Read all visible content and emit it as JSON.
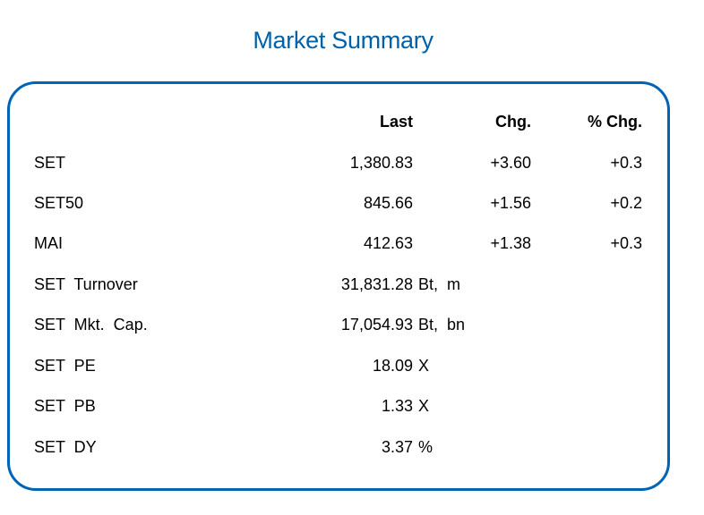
{
  "title": "Market Summary",
  "headers": {
    "last": "Last",
    "chg": "Chg.",
    "pct_chg": "% Chg."
  },
  "indices": [
    {
      "name": "SET",
      "last": "1,380.83",
      "chg": "+3.60",
      "pct_chg": "+0.3"
    },
    {
      "name": "SET50",
      "last": "845.66",
      "chg": "+1.56",
      "pct_chg": "+0.2"
    },
    {
      "name": "MAI",
      "last": "412.63",
      "chg": "+1.38",
      "pct_chg": "+0.3"
    }
  ],
  "stats": [
    {
      "name": "SET Turnover",
      "value": "31,831.28",
      "unit": "Bt, m"
    },
    {
      "name": "SET Mkt. Cap.",
      "value": "17,054.93",
      "unit": "Bt, bn"
    },
    {
      "name": "SET PE",
      "value": "18.09",
      "unit": "X"
    },
    {
      "name": "SET PB",
      "value": "1.33",
      "unit": "X"
    },
    {
      "name": "SET DY",
      "value": "3.37",
      "unit": "%"
    }
  ],
  "colors": {
    "title": "#0060a8",
    "border": "#0064b4"
  }
}
